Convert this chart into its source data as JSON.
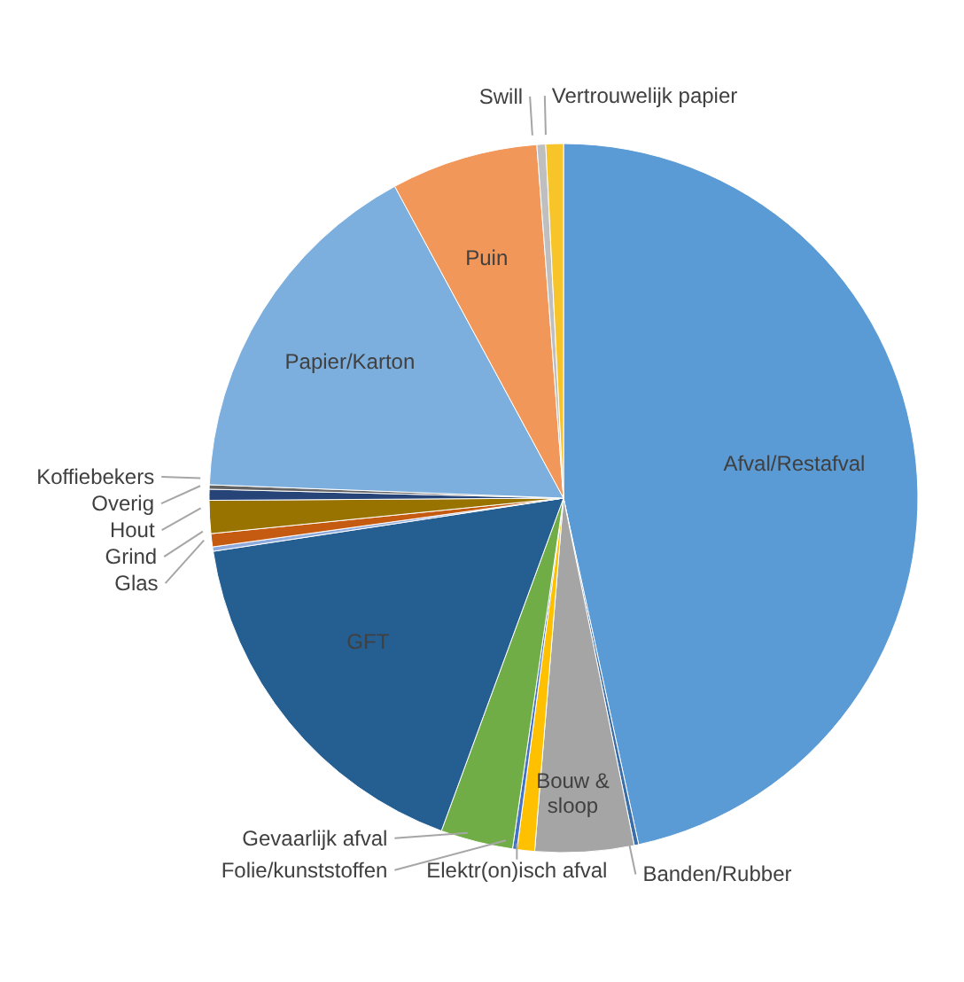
{
  "chart_data": {
    "type": "pie",
    "categories": [
      "Afval/Restafval",
      "Banden/Rubber",
      "Bouw & sloop",
      "Elektr(on)isch afval",
      "Folie/kunststoffen",
      "Gevaarlijk afval",
      "GFT",
      "Glas",
      "Grind",
      "Hout",
      "Overig",
      "Koffiebekers",
      "Papier/Karton",
      "Puin",
      "Swill",
      "Vertrouwelijk papier"
    ],
    "values": [
      46.6,
      0.2,
      4.5,
      0.8,
      0.2,
      3.3,
      17.0,
      0.2,
      0.6,
      1.5,
      0.5,
      0.2,
      16.5,
      6.7,
      0.4,
      0.8
    ],
    "colors": [
      "#5b9bd5",
      "#3b6ea8",
      "#a5a5a5",
      "#ffc000",
      "#4472c4",
      "#70ad47",
      "#255e91",
      "#8faadc",
      "#c55a11",
      "#997300",
      "#264478",
      "#636363",
      "#7cafdd",
      "#f1975a",
      "#bfbfbf",
      "#f7c42a"
    ],
    "legend": false
  }
}
